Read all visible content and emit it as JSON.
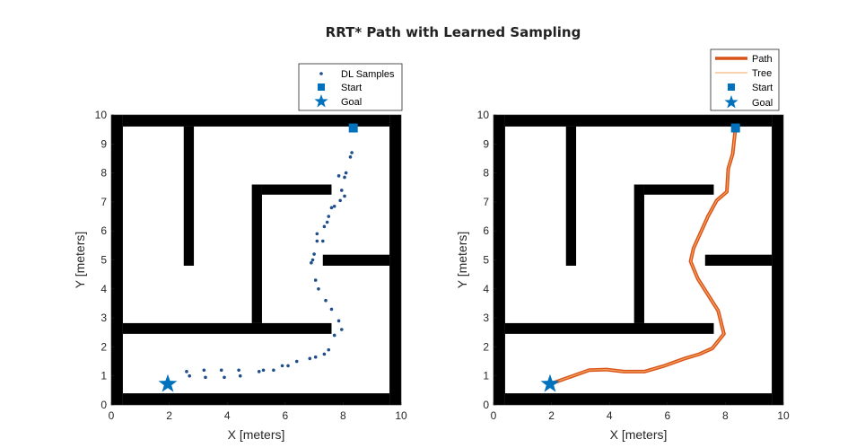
{
  "figure_title": "RRT* Path with Learned Sampling",
  "colors": {
    "samples": "#1f4e8c",
    "marker": "#0072BD",
    "path": "#D95319",
    "tree": "#F4A460",
    "walls": "#000000"
  },
  "chart_data": [
    {
      "type": "scatter",
      "xlabel": "X [meters]",
      "ylabel": "Y [meters]",
      "xlim": [
        0,
        10
      ],
      "ylim": [
        0,
        10
      ],
      "xticks": [
        "0",
        "2",
        "4",
        "6",
        "8",
        "10"
      ],
      "yticks": [
        "0",
        "1",
        "2",
        "3",
        "4",
        "5",
        "6",
        "7",
        "8",
        "9",
        "10"
      ],
      "legend": [
        "DL Samples",
        "Start",
        "Goal"
      ],
      "legend_position": "top-right outside",
      "start": [
        8.35,
        9.55
      ],
      "goal": [
        1.95,
        0.72
      ],
      "walls": [
        [
          0.4,
          0,
          9.6,
          0.4
        ],
        [
          0.4,
          9.6,
          9.6,
          10
        ],
        [
          0,
          0,
          0.4,
          10
        ],
        [
          9.6,
          0,
          10,
          10
        ],
        [
          2.5,
          4.8,
          2.85,
          9.6
        ],
        [
          0.4,
          2.45,
          7.6,
          2.82
        ],
        [
          4.85,
          2.82,
          5.2,
          7.6
        ],
        [
          5.2,
          7.25,
          7.6,
          7.6
        ],
        [
          7.3,
          4.8,
          9.6,
          5.18
        ]
      ],
      "series": [
        {
          "name": "DL Samples",
          "x": [
            2.6,
            2.7,
            3.2,
            3.25,
            3.8,
            3.9,
            4.4,
            4.45,
            5.1,
            5.25,
            5.6,
            5.9,
            6.1,
            6.4,
            6.85,
            7.05,
            7.35,
            7.5,
            7.7,
            7.95,
            7.85,
            7.6,
            7.4,
            7.15,
            7.05,
            6.9,
            6.95,
            7.0,
            7.1,
            7.3,
            7.1,
            7.35,
            7.45,
            7.5,
            7.6,
            7.7,
            7.9,
            8.05,
            7.95,
            7.85,
            8.05,
            8.1,
            8.25,
            8.3
          ],
          "y": [
            1.15,
            1.0,
            1.2,
            0.95,
            1.2,
            0.95,
            1.2,
            1.0,
            1.15,
            1.2,
            1.2,
            1.35,
            1.35,
            1.5,
            1.6,
            1.65,
            1.75,
            1.9,
            2.4,
            2.6,
            2.9,
            3.3,
            3.6,
            4.0,
            4.3,
            4.9,
            5.0,
            5.2,
            5.65,
            5.65,
            5.9,
            6.15,
            6.3,
            6.5,
            6.8,
            6.85,
            7.05,
            7.2,
            7.4,
            7.9,
            7.85,
            8.0,
            8.55,
            8.7
          ]
        }
      ]
    },
    {
      "type": "line",
      "xlabel": "X [meters]",
      "ylabel": "Y [meters]",
      "xlim": [
        0,
        10
      ],
      "ylim": [
        0,
        10
      ],
      "xticks": [
        "0",
        "2",
        "4",
        "6",
        "8",
        "10"
      ],
      "yticks": [
        "0",
        "1",
        "2",
        "3",
        "4",
        "5",
        "6",
        "7",
        "8",
        "9",
        "10"
      ],
      "legend": [
        "Path",
        "Tree",
        "Start",
        "Goal"
      ],
      "legend_position": "top-right outside",
      "start": [
        8.35,
        9.55
      ],
      "goal": [
        1.95,
        0.72
      ],
      "walls": [
        [
          0.4,
          0,
          9.6,
          0.4
        ],
        [
          0.4,
          9.6,
          9.6,
          10
        ],
        [
          0,
          0,
          0.4,
          10
        ],
        [
          9.6,
          0,
          10,
          10
        ],
        [
          2.5,
          4.8,
          2.85,
          9.6
        ],
        [
          0.4,
          2.45,
          7.6,
          2.82
        ],
        [
          4.85,
          2.82,
          5.2,
          7.6
        ],
        [
          5.2,
          7.25,
          7.6,
          7.6
        ],
        [
          7.3,
          4.8,
          9.6,
          5.18
        ]
      ],
      "series": [
        {
          "name": "Path",
          "x": [
            1.95,
            2.6,
            3.3,
            3.9,
            4.5,
            5.2,
            5.9,
            6.6,
            7.1,
            7.55,
            7.95,
            7.75,
            7.05,
            6.8,
            6.9,
            7.4,
            7.7,
            8.05,
            8.1,
            8.25,
            8.35
          ],
          "y": [
            0.72,
            0.95,
            1.2,
            1.22,
            1.15,
            1.15,
            1.35,
            1.6,
            1.75,
            1.95,
            2.45,
            3.25,
            4.35,
            4.95,
            5.4,
            6.5,
            7.05,
            7.35,
            8.15,
            8.65,
            9.55
          ]
        },
        {
          "name": "Tree",
          "x": [
            1.95,
            2.6,
            3.3,
            3.9,
            4.5,
            5.2,
            5.9,
            6.6,
            7.1,
            7.55,
            7.95,
            7.75,
            7.05,
            6.8,
            6.9,
            7.4,
            7.7,
            8.05,
            8.1,
            8.25,
            8.35
          ],
          "y": [
            0.72,
            0.95,
            1.2,
            1.22,
            1.15,
            1.15,
            1.35,
            1.6,
            1.75,
            1.95,
            2.45,
            3.25,
            4.35,
            4.95,
            5.4,
            6.5,
            7.05,
            7.35,
            8.15,
            8.65,
            9.55
          ]
        }
      ]
    }
  ]
}
